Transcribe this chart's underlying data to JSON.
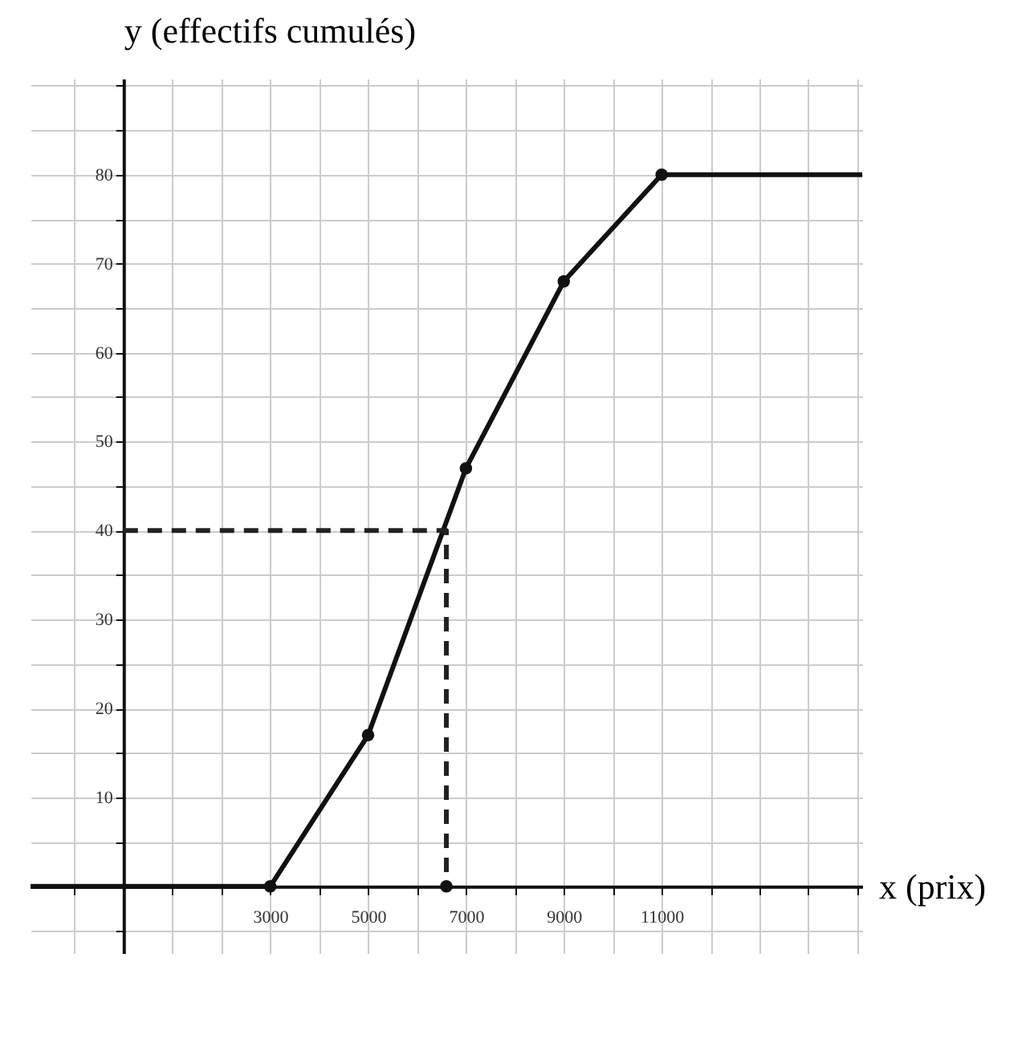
{
  "chart_data": {
    "type": "line",
    "xlabel": "x (prix)",
    "ylabel": "y (effectifs cumulés)",
    "xlim": [
      -1900,
      15100
    ],
    "ylim": [
      -7.5,
      90.8
    ],
    "xticks": [
      {
        "value": -1000,
        "label": null
      },
      {
        "value": 0,
        "label": null
      },
      {
        "value": 1000,
        "label": null
      },
      {
        "value": 2000,
        "label": null
      },
      3000,
      {
        "value": 4000,
        "label": null
      },
      5000,
      {
        "value": 6000,
        "label": null
      },
      7000,
      {
        "value": 8000,
        "label": null
      },
      9000,
      {
        "value": 10000,
        "label": null
      },
      11000,
      {
        "value": 12000,
        "label": null
      },
      {
        "value": 13000,
        "label": null
      },
      {
        "value": 14000,
        "label": null
      },
      {
        "value": 15000,
        "label": null
      }
    ],
    "yticks": [
      {
        "value": -5,
        "label": null
      },
      {
        "value": 0,
        "label": null
      },
      {
        "value": 5,
        "label": null
      },
      10,
      {
        "value": 15,
        "label": null
      },
      20,
      {
        "value": 25,
        "label": null
      },
      30,
      {
        "value": 35,
        "label": null
      },
      40,
      {
        "value": 45,
        "label": null
      },
      50,
      {
        "value": 55,
        "label": null
      },
      60,
      {
        "value": 65,
        "label": null
      },
      70,
      {
        "value": 75,
        "label": null
      },
      80,
      {
        "value": 85,
        "label": null
      },
      {
        "value": 90,
        "label": null
      }
    ],
    "grid": true,
    "series": [
      {
        "color": "#111111",
        "line_style": "solid",
        "marker": "none",
        "x": [
          -1900,
          3000,
          5000,
          7000,
          9000,
          11000,
          15100
        ],
        "values": [
          0,
          0,
          17,
          47,
          68,
          80,
          80
        ]
      },
      {
        "type": "scatter",
        "color": "#111111",
        "marker": "circle",
        "x": [
          3000,
          5000,
          7000,
          9000,
          11000
        ],
        "values": [
          0,
          17,
          47,
          68,
          80
        ]
      },
      {
        "type": "line",
        "color": "#222222",
        "line_style": "dashed",
        "marker": "none",
        "x": [
          0,
          6600,
          6600
        ],
        "values": [
          40,
          40,
          0
        ]
      },
      {
        "type": "scatter",
        "color": "#111111",
        "marker": "circle",
        "x": [
          6600
        ],
        "values": [
          0
        ]
      }
    ]
  }
}
